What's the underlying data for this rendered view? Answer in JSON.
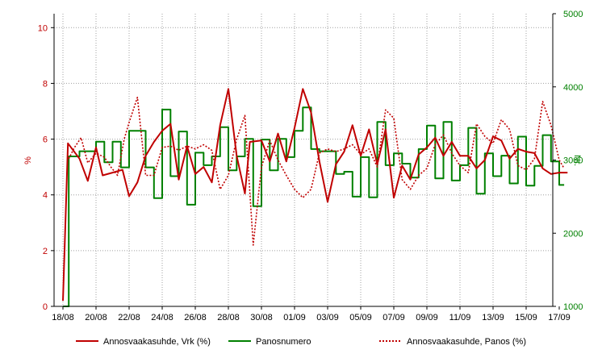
{
  "chart_data": {
    "type": "line",
    "title": "",
    "x_ticks": [
      "18/08",
      "20/08",
      "22/08",
      "24/08",
      "26/08",
      "28/08",
      "30/08",
      "01/09",
      "03/09",
      "05/09",
      "07/09",
      "09/09",
      "11/09",
      "13/09",
      "15/09",
      "17/09"
    ],
    "y_left": {
      "label": "%",
      "range": [
        0,
        10.5
      ],
      "ticks": [
        0,
        2,
        4,
        6,
        8,
        10
      ],
      "color": "#c00000"
    },
    "y_right": {
      "label": "Nr.",
      "range": [
        1000,
        5000
      ],
      "ticks": [
        1000,
        2000,
        3000,
        4000,
        5000
      ],
      "color": "#008000"
    },
    "grid": true,
    "legend_position": "bottom",
    "series": [
      {
        "name": "Annosvaakasuhde, Vrk (%)",
        "axis": "left",
        "style": "solid",
        "color": "#c00000",
        "points": [
          [
            0.0,
            0.2
          ],
          [
            0.3,
            5.85
          ],
          [
            1.0,
            5.3
          ],
          [
            1.5,
            4.5
          ],
          [
            2.0,
            5.7
          ],
          [
            2.4,
            4.7
          ],
          [
            3.0,
            4.8
          ],
          [
            3.6,
            4.9
          ],
          [
            4.0,
            3.95
          ],
          [
            4.5,
            4.45
          ],
          [
            5.0,
            5.4
          ],
          [
            5.5,
            5.9
          ],
          [
            6.0,
            6.3
          ],
          [
            6.5,
            6.55
          ],
          [
            7.0,
            4.55
          ],
          [
            7.5,
            5.75
          ],
          [
            8.0,
            4.75
          ],
          [
            8.5,
            5.0
          ],
          [
            9.0,
            4.45
          ],
          [
            9.5,
            6.5
          ],
          [
            10.0,
            7.8
          ],
          [
            10.5,
            5.4
          ],
          [
            11.0,
            4.05
          ],
          [
            11.3,
            5.9
          ],
          [
            12.0,
            5.95
          ],
          [
            12.5,
            5.2
          ],
          [
            13.0,
            6.2
          ],
          [
            13.5,
            5.2
          ],
          [
            14.0,
            6.4
          ],
          [
            14.5,
            7.8
          ],
          [
            15.0,
            6.95
          ],
          [
            15.5,
            5.2
          ],
          [
            16.0,
            3.75
          ],
          [
            16.5,
            5.1
          ],
          [
            17.0,
            5.55
          ],
          [
            17.5,
            6.5
          ],
          [
            18.0,
            5.4
          ],
          [
            18.5,
            6.35
          ],
          [
            19.0,
            5.1
          ],
          [
            19.5,
            6.35
          ],
          [
            20.0,
            3.9
          ],
          [
            20.5,
            5.05
          ],
          [
            21.0,
            4.55
          ],
          [
            21.5,
            5.45
          ],
          [
            22.0,
            5.7
          ],
          [
            22.5,
            6.05
          ],
          [
            23.0,
            5.4
          ],
          [
            23.5,
            5.9
          ],
          [
            24.0,
            5.4
          ],
          [
            24.5,
            5.4
          ],
          [
            25.0,
            4.95
          ],
          [
            25.5,
            5.25
          ],
          [
            26.0,
            6.1
          ],
          [
            26.5,
            5.95
          ],
          [
            27.0,
            5.3
          ],
          [
            27.5,
            5.65
          ],
          [
            28.0,
            5.55
          ],
          [
            28.5,
            5.5
          ],
          [
            29.0,
            4.95
          ],
          [
            29.5,
            4.75
          ],
          [
            30.0,
            4.8
          ],
          [
            30.5,
            4.8
          ]
        ]
      },
      {
        "name": "Panosnumero",
        "axis": "right",
        "style": "step",
        "color": "#008000",
        "points": [
          [
            0.0,
            1000
          ],
          [
            0.35,
            1000
          ],
          [
            0.35,
            3050
          ],
          [
            1.0,
            3050
          ],
          [
            1.0,
            3120
          ],
          [
            2.0,
            3120
          ],
          [
            2.0,
            3250
          ],
          [
            2.5,
            3250
          ],
          [
            2.5,
            2970
          ],
          [
            3.0,
            2970
          ],
          [
            3.0,
            3250
          ],
          [
            3.5,
            3250
          ],
          [
            3.5,
            2900
          ],
          [
            4.0,
            2900
          ],
          [
            4.0,
            3400
          ],
          [
            5.0,
            3400
          ],
          [
            5.0,
            2900
          ],
          [
            5.5,
            2900
          ],
          [
            5.5,
            2480
          ],
          [
            6.0,
            2480
          ],
          [
            6.0,
            3690
          ],
          [
            6.5,
            3690
          ],
          [
            6.5,
            2780
          ],
          [
            7.0,
            2780
          ],
          [
            7.0,
            3390
          ],
          [
            7.5,
            3390
          ],
          [
            7.5,
            2390
          ],
          [
            8.0,
            2390
          ],
          [
            8.0,
            3100
          ],
          [
            8.5,
            3100
          ],
          [
            8.5,
            2930
          ],
          [
            9.0,
            2930
          ],
          [
            9.0,
            3050
          ],
          [
            9.5,
            3050
          ],
          [
            9.5,
            3450
          ],
          [
            10.0,
            3450
          ],
          [
            10.0,
            2860
          ],
          [
            10.5,
            2860
          ],
          [
            10.5,
            3050
          ],
          [
            11.0,
            3050
          ],
          [
            11.0,
            3290
          ],
          [
            11.5,
            3290
          ],
          [
            11.5,
            2370
          ],
          [
            12.0,
            2370
          ],
          [
            12.0,
            3280
          ],
          [
            12.5,
            3280
          ],
          [
            12.5,
            2860
          ],
          [
            13.0,
            2860
          ],
          [
            13.0,
            3290
          ],
          [
            13.5,
            3290
          ],
          [
            13.5,
            3040
          ],
          [
            14.0,
            3040
          ],
          [
            14.0,
            3400
          ],
          [
            14.5,
            3400
          ],
          [
            14.5,
            3720
          ],
          [
            15.0,
            3720
          ],
          [
            15.0,
            3150
          ],
          [
            15.5,
            3150
          ],
          [
            15.5,
            3120
          ],
          [
            16.0,
            3120
          ],
          [
            16.0,
            3120
          ],
          [
            16.5,
            3120
          ],
          [
            16.5,
            2810
          ],
          [
            17.0,
            2810
          ],
          [
            17.0,
            2840
          ],
          [
            17.5,
            2840
          ],
          [
            17.5,
            2500
          ],
          [
            18.0,
            2500
          ],
          [
            18.0,
            3040
          ],
          [
            18.5,
            3040
          ],
          [
            18.5,
            2490
          ],
          [
            19.0,
            2490
          ],
          [
            19.0,
            3520
          ],
          [
            19.5,
            3520
          ],
          [
            19.5,
            2930
          ],
          [
            20.0,
            2930
          ],
          [
            20.0,
            3090
          ],
          [
            20.5,
            3090
          ],
          [
            20.5,
            2950
          ],
          [
            21.0,
            2950
          ],
          [
            21.0,
            2760
          ],
          [
            21.5,
            2760
          ],
          [
            21.5,
            3150
          ],
          [
            22.0,
            3150
          ],
          [
            22.0,
            3470
          ],
          [
            22.5,
            3470
          ],
          [
            22.5,
            2750
          ],
          [
            23.0,
            2750
          ],
          [
            23.0,
            3520
          ],
          [
            23.5,
            3520
          ],
          [
            23.5,
            2720
          ],
          [
            24.0,
            2720
          ],
          [
            24.0,
            2930
          ],
          [
            24.5,
            2930
          ],
          [
            24.5,
            3440
          ],
          [
            25.0,
            3440
          ],
          [
            25.0,
            2540
          ],
          [
            25.5,
            2540
          ],
          [
            25.5,
            3090
          ],
          [
            26.0,
            3090
          ],
          [
            26.0,
            2780
          ],
          [
            26.5,
            2780
          ],
          [
            26.5,
            3060
          ],
          [
            27.0,
            3060
          ],
          [
            27.0,
            2680
          ],
          [
            27.5,
            2680
          ],
          [
            27.5,
            3320
          ],
          [
            28.0,
            3320
          ],
          [
            28.0,
            2650
          ],
          [
            28.5,
            2650
          ],
          [
            28.5,
            2920
          ],
          [
            29.0,
            2920
          ],
          [
            29.0,
            3340
          ],
          [
            29.5,
            3340
          ],
          [
            29.5,
            2980
          ],
          [
            30.0,
            2980
          ],
          [
            30.0,
            2660
          ],
          [
            30.3,
            2660
          ]
        ]
      },
      {
        "name": "Annosvaakasuhde, Panos (%)",
        "axis": "left",
        "style": "dotted",
        "color": "#c00000",
        "points": [
          [
            0.35,
            5.3
          ],
          [
            0.7,
            5.7
          ],
          [
            1.1,
            6.05
          ],
          [
            1.5,
            5.15
          ],
          [
            2.0,
            5.5
          ],
          [
            2.5,
            5.35
          ],
          [
            2.9,
            5.0
          ],
          [
            3.3,
            4.7
          ],
          [
            3.7,
            6.0
          ],
          [
            4.0,
            6.6
          ],
          [
            4.5,
            7.5
          ],
          [
            5.0,
            4.7
          ],
          [
            5.5,
            4.7
          ],
          [
            6.0,
            5.7
          ],
          [
            6.5,
            5.75
          ],
          [
            7.0,
            5.6
          ],
          [
            7.5,
            5.75
          ],
          [
            8.0,
            5.65
          ],
          [
            8.5,
            5.8
          ],
          [
            9.0,
            5.6
          ],
          [
            9.5,
            4.2
          ],
          [
            10.0,
            4.7
          ],
          [
            10.5,
            6.0
          ],
          [
            11.0,
            6.85
          ],
          [
            11.5,
            2.2
          ],
          [
            12.0,
            5.0
          ],
          [
            12.5,
            5.95
          ],
          [
            13.0,
            5.25
          ],
          [
            13.5,
            4.7
          ],
          [
            14.0,
            4.2
          ],
          [
            14.5,
            3.9
          ],
          [
            15.0,
            4.2
          ],
          [
            15.5,
            5.5
          ],
          [
            16.0,
            5.65
          ],
          [
            16.5,
            5.55
          ],
          [
            17.0,
            5.65
          ],
          [
            17.5,
            5.8
          ],
          [
            18.0,
            5.45
          ],
          [
            18.5,
            5.65
          ],
          [
            19.0,
            5.0
          ],
          [
            19.5,
            7.05
          ],
          [
            20.0,
            6.75
          ],
          [
            20.5,
            4.55
          ],
          [
            21.0,
            4.2
          ],
          [
            21.5,
            4.7
          ],
          [
            22.0,
            4.95
          ],
          [
            22.5,
            5.8
          ],
          [
            23.0,
            6.15
          ],
          [
            23.5,
            5.5
          ],
          [
            24.0,
            5.05
          ],
          [
            24.5,
            4.8
          ],
          [
            25.0,
            6.55
          ],
          [
            25.5,
            6.1
          ],
          [
            26.0,
            5.85
          ],
          [
            26.5,
            6.7
          ],
          [
            27.0,
            6.35
          ],
          [
            27.5,
            5.05
          ],
          [
            28.0,
            4.9
          ],
          [
            28.5,
            5.3
          ],
          [
            29.0,
            7.35
          ],
          [
            29.5,
            6.5
          ],
          [
            30.0,
            5.25
          ],
          [
            30.3,
            4.95
          ]
        ]
      }
    ]
  }
}
